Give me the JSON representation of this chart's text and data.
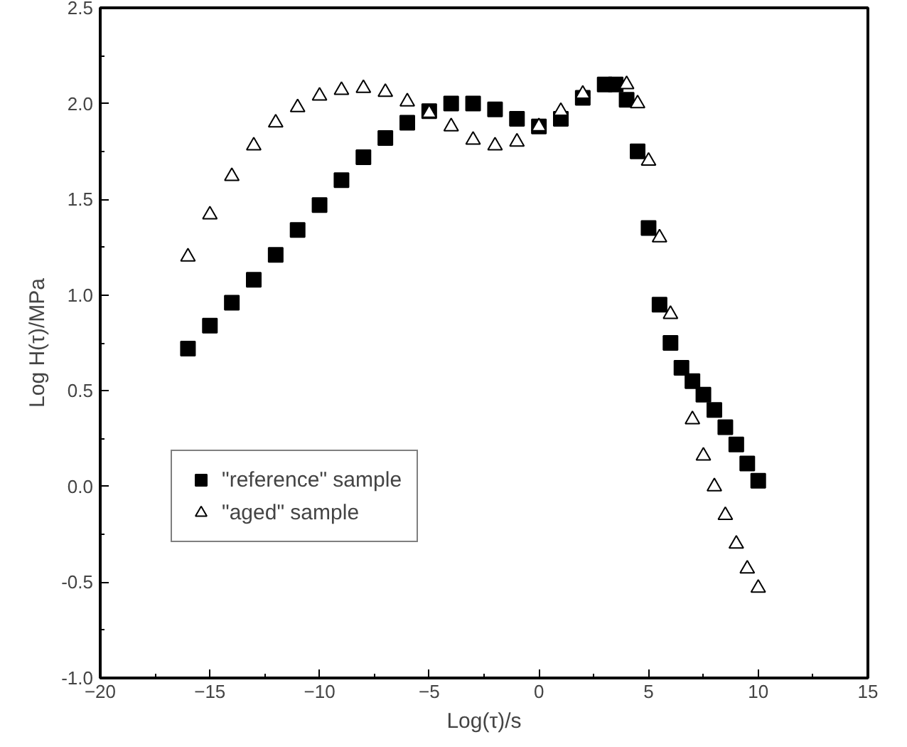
{
  "chart_data": {
    "type": "scatter",
    "xlabel": "Log(τ)/s",
    "ylabel": "Log H(τ)/MPa",
    "xlim": [
      -20,
      15
    ],
    "xticks": [
      -20,
      -15,
      -10,
      -5,
      0,
      5,
      10,
      15
    ],
    "ylim": [
      -1.0,
      2.5
    ],
    "yticks": [
      {
        "value": -1,
        "label": "-1.0"
      },
      {
        "value": -0.5,
        "label": "-0.5"
      },
      {
        "value": 0,
        "label": "0.0"
      },
      {
        "value": 0.5,
        "label": "0.5"
      },
      {
        "value": 1,
        "label": "1.0"
      },
      {
        "value": 1.5,
        "label": "1.5"
      },
      {
        "value": 2,
        "label": "2.0"
      },
      {
        "value": 2.5,
        "label": "2.5"
      }
    ],
    "grid": false,
    "legend": "bottom left",
    "series": [
      {
        "name": "\"reference\" sample",
        "color": "#000000",
        "marker": "square",
        "x": [
          -16,
          -15,
          -14,
          -13,
          -12,
          -11,
          -10,
          -9,
          -8,
          -7,
          -6,
          -5,
          -4,
          -3,
          -2,
          -1,
          0,
          1,
          2,
          3,
          3.5,
          4,
          4.5,
          5,
          5.5,
          6,
          6.5,
          7,
          7.5,
          8,
          8.5,
          9,
          9.5,
          10
        ],
        "values": [
          0.72,
          0.84,
          0.96,
          1.08,
          1.21,
          1.34,
          1.47,
          1.6,
          1.72,
          1.82,
          1.9,
          1.96,
          2.0,
          2.0,
          1.97,
          1.92,
          1.88,
          1.92,
          2.03,
          2.1,
          2.1,
          2.02,
          1.75,
          1.35,
          0.95,
          0.75,
          0.62,
          0.55,
          0.48,
          0.4,
          0.31,
          0.22,
          0.12,
          0.03
        ]
      },
      {
        "name": "\"aged\" sample",
        "color": "#000000",
        "marker": "triangle",
        "x": [
          -16,
          -15,
          -14,
          -13,
          -12,
          -11,
          -10,
          -9,
          -8,
          -7,
          -6,
          -5,
          -4,
          -3,
          -2,
          -1,
          0,
          1,
          2,
          4,
          4.5,
          5,
          5.5,
          6,
          7,
          7.5,
          8,
          8.5,
          9,
          9.5,
          10
        ],
        "values": [
          1.2,
          1.42,
          1.62,
          1.78,
          1.9,
          1.98,
          2.04,
          2.07,
          2.08,
          2.06,
          2.01,
          1.95,
          1.88,
          1.81,
          1.78,
          1.8,
          1.88,
          1.96,
          2.05,
          2.1,
          2.0,
          1.7,
          1.3,
          0.9,
          0.35,
          0.16,
          0.0,
          -0.15,
          -0.3,
          -0.43,
          -0.53
        ]
      }
    ]
  }
}
